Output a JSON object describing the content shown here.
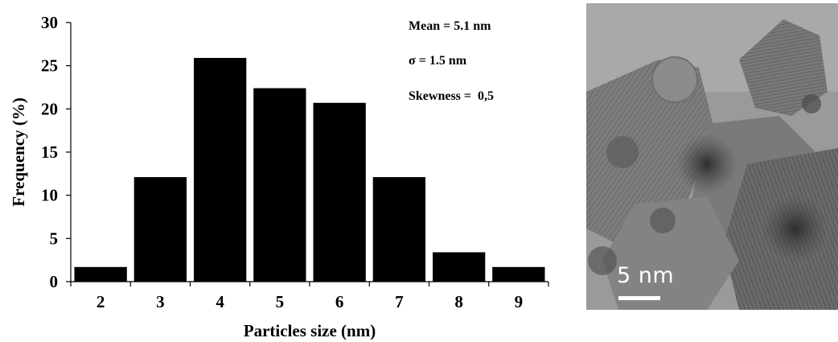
{
  "chart_data": {
    "type": "bar",
    "categories": [
      "2",
      "3",
      "4",
      "5",
      "6",
      "7",
      "8",
      "9"
    ],
    "values": [
      1.7,
      12.1,
      25.9,
      22.4,
      20.7,
      12.1,
      3.4,
      1.7
    ],
    "xlabel": "Particles size (nm)",
    "ylabel": "Frequency (%)",
    "ylim": [
      0,
      30
    ],
    "yticks": [
      0,
      5,
      10,
      15,
      20,
      25,
      30
    ],
    "bar_color": "#000000",
    "grid": false,
    "annotations": [
      "Mean = 5.1 nm",
      "σ = 1.5 nm",
      "Skewness =  0,5"
    ]
  },
  "micrograph": {
    "scale_label": "5 nm"
  }
}
